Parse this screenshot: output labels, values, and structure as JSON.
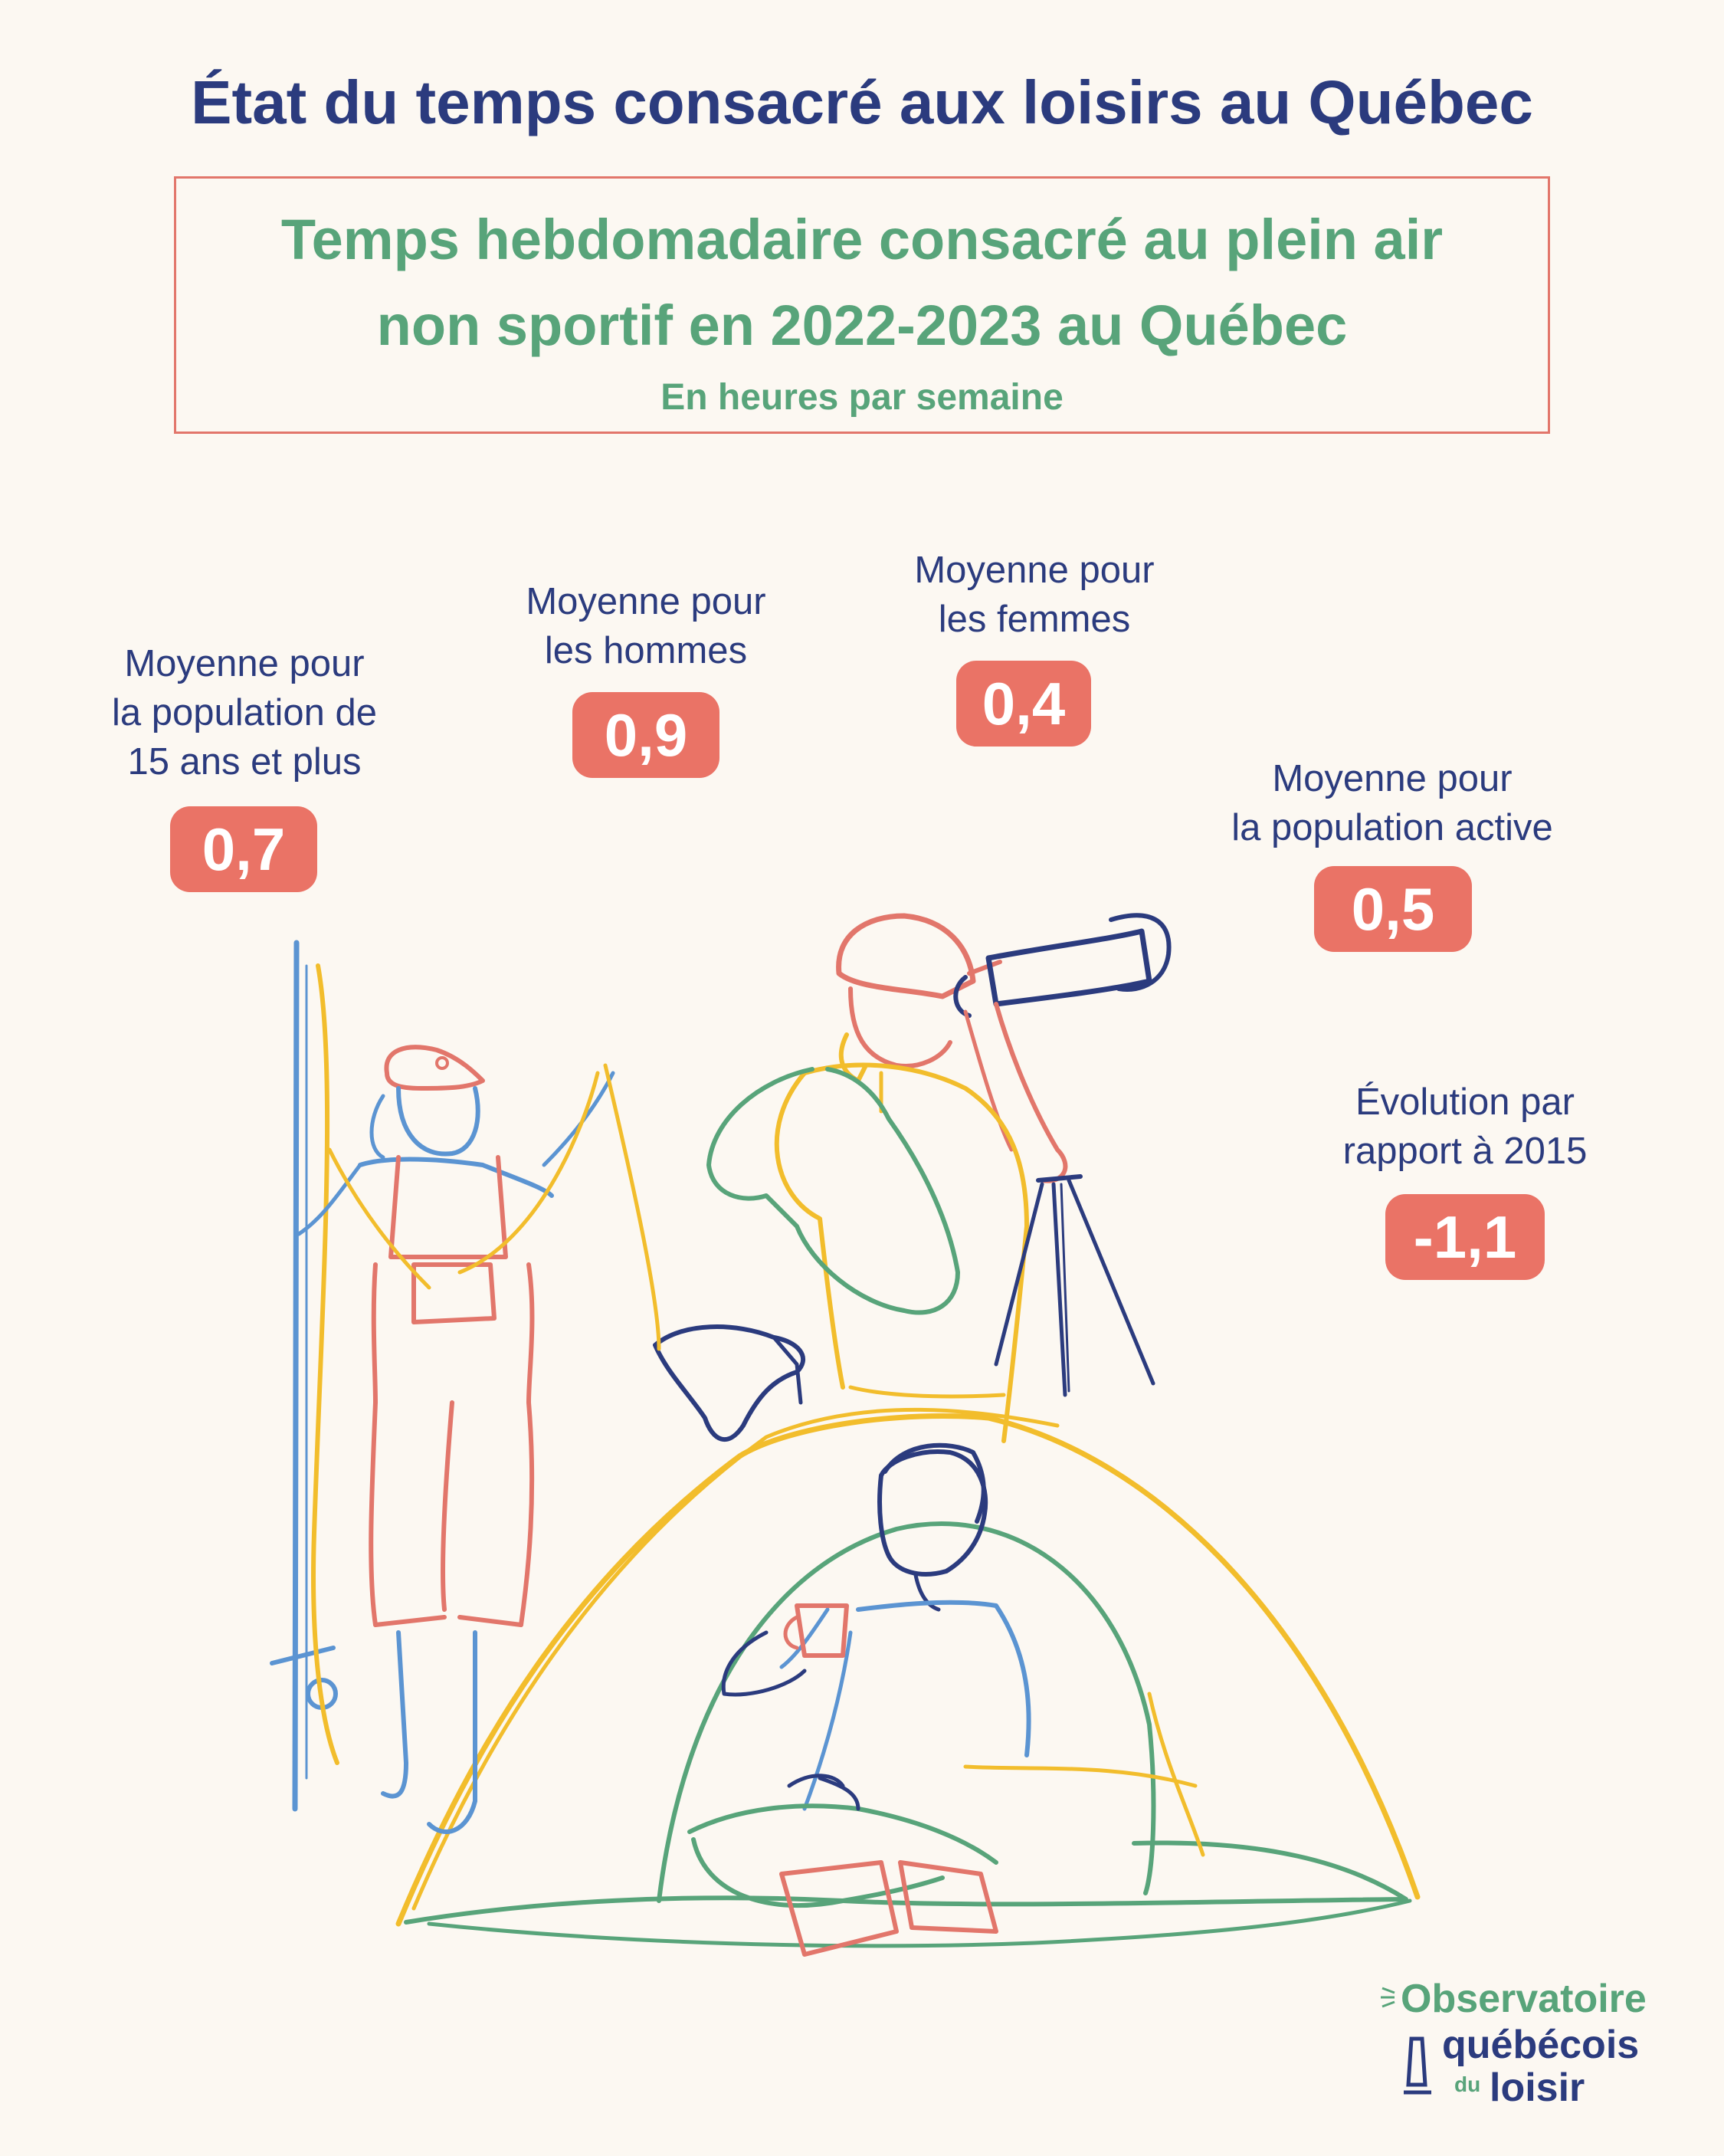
{
  "header": {
    "title": "État du temps consacré aux loisirs au Québec"
  },
  "subtitle": {
    "line1": "Temps hebdomadaire consacré au plein air",
    "line2": "non sportif en 2022-2023 au Québec",
    "units": "En heures par semaine"
  },
  "stats": [
    {
      "label": [
        "Moyenne pour",
        "la population de",
        "15 ans et plus"
      ],
      "value": "0,7"
    },
    {
      "label": [
        "Moyenne pour",
        "les hommes"
      ],
      "value": "0,9"
    },
    {
      "label": [
        "Moyenne pour",
        "les femmes"
      ],
      "value": "0,4"
    },
    {
      "label": [
        "Moyenne pour",
        "la population active"
      ],
      "value": "0,5"
    },
    {
      "label": [
        "Évolution par",
        "rapport à 2015"
      ],
      "value": "-1,1"
    }
  ],
  "logo": {
    "line1": "Observatoire",
    "line2": "québécois",
    "small": "du",
    "line3": "loisir"
  },
  "colors": {
    "background": "#fcf8f2",
    "navy": "#2b3b7e",
    "green": "#58a47a",
    "coral": "#ea7366",
    "yellow": "#f2bd2c",
    "blue": "#5b94d2"
  },
  "illustration": {
    "icons": [
      "fishing-woman-icon",
      "fish-icon",
      "binocular-man-icon",
      "tripod-icon",
      "tent-icon",
      "camper-man-icon"
    ]
  }
}
